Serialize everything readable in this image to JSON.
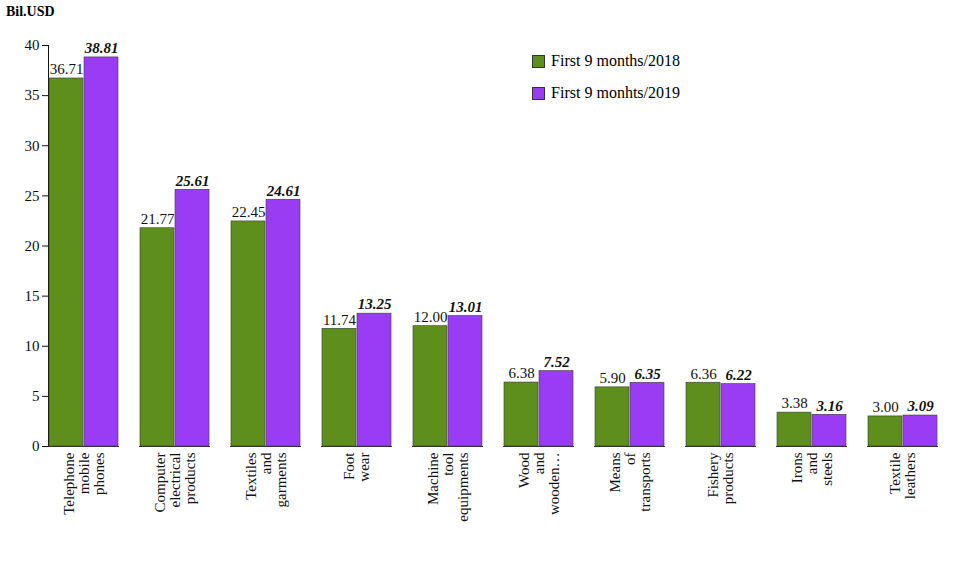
{
  "chart_data": {
    "type": "bar",
    "y_label": "Bil.USD",
    "categories": [
      "Telephone mobile phones",
      "Computer electrical products",
      "Textiles and garments",
      "Foot wear",
      "Machine tool equipments",
      "Wood and wooden…",
      "Means of transports",
      "Fishery products",
      "Irons and steels",
      "Textile leathers"
    ],
    "series": [
      {
        "name": "First 9 months/2018",
        "color": "#5e8e1c",
        "values": [
          36.71,
          21.77,
          22.45,
          11.74,
          12,
          6.38,
          5.9,
          6.36,
          3.38,
          3
        ],
        "value_labels": [
          "36.71",
          "21.77",
          "22.45",
          "11.74",
          "12.00",
          "6.38",
          "5.90",
          "6.36",
          "3.38",
          "3.00"
        ]
      },
      {
        "name": "First 9 monhts/2019",
        "color": "#9b3cf5",
        "values": [
          38.81,
          25.61,
          24.61,
          13.25,
          13.01,
          7.52,
          6.35,
          6.22,
          3.16,
          3.09
        ],
        "value_labels": [
          "38.81",
          "25.61",
          "24.61",
          "13.25",
          "13.01",
          "7.52",
          "6.35",
          "6.22",
          "3.16",
          "3.09"
        ]
      }
    ],
    "ylim": [
      0,
      40
    ],
    "yticks": [
      0,
      5,
      10,
      15,
      20,
      25,
      30,
      35,
      40
    ],
    "grid": false,
    "legend": "top-right",
    "data_labels": true
  }
}
